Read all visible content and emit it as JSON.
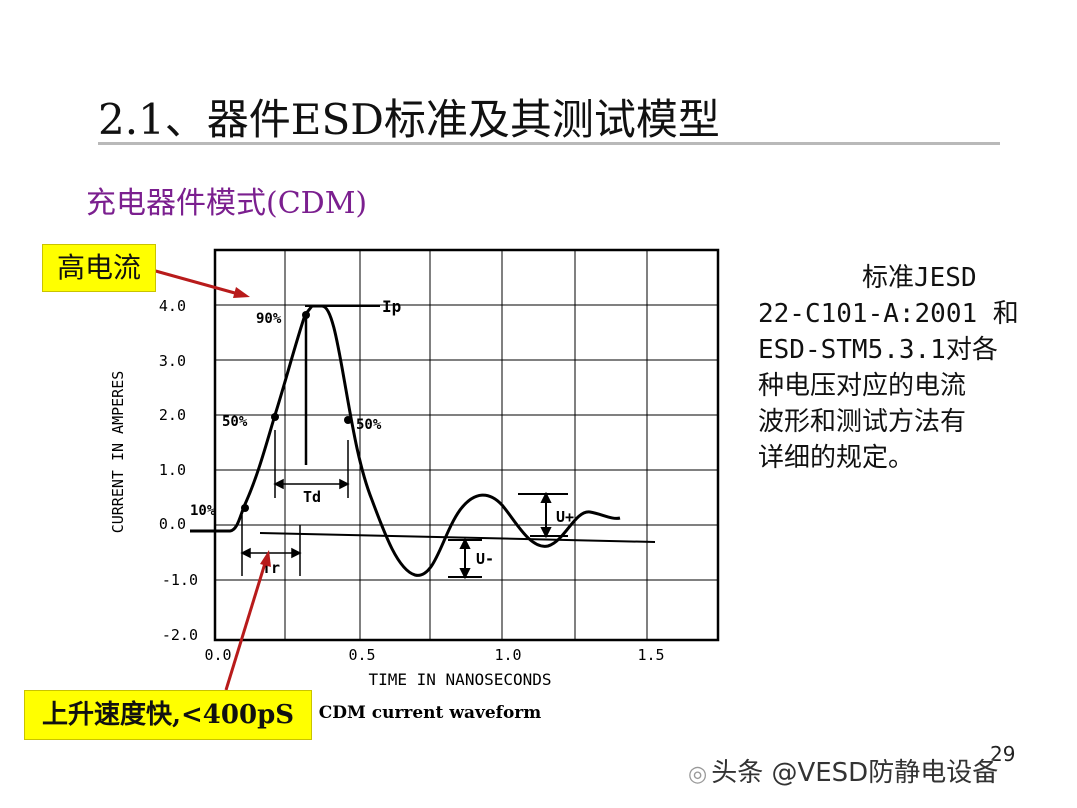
{
  "slide": {
    "title": "2.1、器件ESD标准及其测试模型",
    "subtitle": "充电器件模式(CDM)",
    "page_number": "29"
  },
  "callouts": {
    "high_current": "高电流",
    "rise_fast": "上升速度快,<400pS"
  },
  "description_lines": [
    "标准JESD",
    "22-C101-A:2001 和",
    "ESD-STM5.3.1对各",
    "种电压对应的电流",
    "波形和测试方法有",
    "详细的规定。"
  ],
  "waveform": {
    "y_axis_title": "CURRENT IN AMPERES",
    "x_axis_title": "TIME IN NANOSECONDS",
    "caption": "CDM current waveform",
    "y_ticks": [
      "4.0",
      "3.0",
      "2.0",
      "1.0",
      "0.0",
      "-1.0",
      "-2.0"
    ],
    "x_ticks": [
      "0.0",
      "0.5",
      "1.0",
      "1.5"
    ],
    "annotations": {
      "p90": "90%",
      "p50_left": "50%",
      "p50_right": "50%",
      "p10": "10%",
      "ip": "Ip",
      "td": "Td",
      "tr": "Tr",
      "u_plus": "U+",
      "u_minus": "U-"
    },
    "line_color": "#000000",
    "arrow_color": "#b81b1b"
  },
  "watermark": {
    "icon": "toutiao-icon",
    "text": "头条 @VESD防静电设备"
  }
}
